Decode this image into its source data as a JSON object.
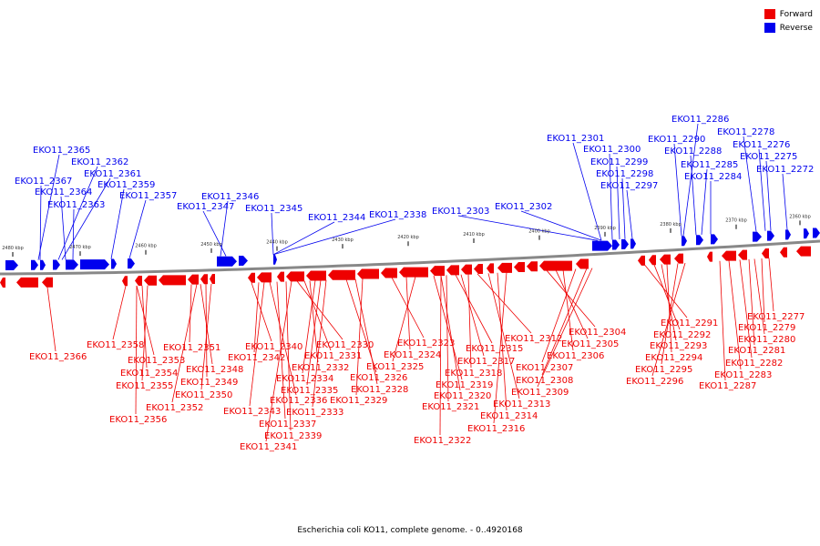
{
  "title": "Escherichia coli KO11, complete genome. - 0..4920168",
  "legend": {
    "forward": {
      "label": "Forward",
      "color": "#ee0000"
    },
    "reverse": {
      "label": "Reverse",
      "color": "#0000ee"
    }
  },
  "scale_ticks": [
    "2480 kbp",
    "2470 kbp",
    "2460 kbp",
    "2450 kbp",
    "2440 kbp",
    "2430 kbp",
    "2420 kbp",
    "2410 kbp",
    "2400 kbp",
    "2390 kbp",
    "2380 kbp",
    "2370 kbp",
    "2360 kbp"
  ],
  "reverse_genes": [
    "EKO11_2365",
    "EKO11_2362",
    "EKO11_2367",
    "EKO11_2361",
    "EKO11_2364",
    "EKO11_2359",
    "EKO11_2363",
    "EKO11_2357",
    "EKO11_2346",
    "EKO11_2347",
    "EKO11_2345",
    "EKO11_2344",
    "EKO11_2338",
    "EKO11_2303",
    "EKO11_2302",
    "EKO11_2301",
    "EKO11_2300",
    "EKO11_2299",
    "EKO11_2298",
    "EKO11_2297",
    "EKO11_2286",
    "EKO11_2290",
    "EKO11_2288",
    "EKO11_2285",
    "EKO11_2284",
    "EKO11_2278",
    "EKO11_2276",
    "EKO11_2275",
    "EKO11_2272"
  ],
  "forward_genes": [
    "EKO11_2366",
    "EKO11_2358",
    "EKO11_2353",
    "EKO11_2354",
    "EKO11_2355",
    "EKO11_2356",
    "EKO11_2351",
    "EKO11_2348",
    "EKO11_2349",
    "EKO11_2350",
    "EKO11_2352",
    "EKO11_2340",
    "EKO11_2342",
    "EKO11_2343",
    "EKO11_2336",
    "EKO11_2337",
    "EKO11_2339",
    "EKO11_2341",
    "EKO11_2330",
    "EKO11_2331",
    "EKO11_2332",
    "EKO11_2334",
    "EKO11_2335",
    "EKO11_2333",
    "EKO11_2326",
    "EKO11_2328",
    "EKO11_2329",
    "EKO11_2323",
    "EKO11_2324",
    "EKO11_2325",
    "EKO11_2319",
    "EKO11_2320",
    "EKO11_2321",
    "EKO11_2322",
    "EKO11_2315",
    "EKO11_2317",
    "EKO11_2318",
    "EKO11_2312",
    "EKO11_2313",
    "EKO11_2314",
    "EKO11_2316",
    "EKO11_2304",
    "EKO11_2305",
    "EKO11_2306",
    "EKO11_2307",
    "EKO11_2308",
    "EKO11_2309",
    "EKO11_2291",
    "EKO11_2292",
    "EKO11_2293",
    "EKO11_2294",
    "EKO11_2295",
    "EKO11_2296",
    "EKO11_2277",
    "EKO11_2279",
    "EKO11_2280",
    "EKO11_2281",
    "EKO11_2282",
    "EKO11_2283",
    "EKO11_2287"
  ]
}
